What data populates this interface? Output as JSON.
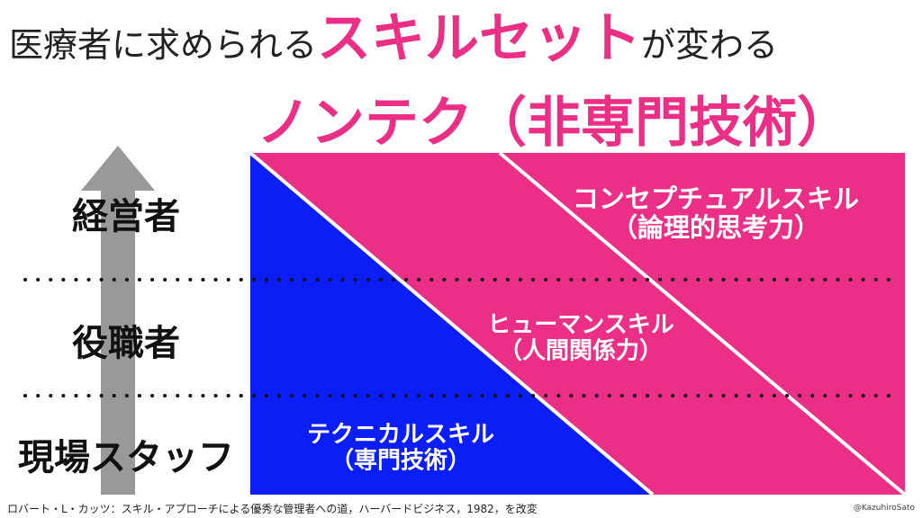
{
  "title": {
    "prefix": "医療者に求められる",
    "highlight": "スキルセット",
    "suffix": "が変わる",
    "subtitle": "ノンテク（非専門技術）"
  },
  "levels": [
    "経営者",
    "役職者",
    "現場スタッフ"
  ],
  "skills": [
    {
      "name": "コンセプチュアルスキル",
      "description": "（論理的思考力）"
    },
    {
      "name": "ヒューマンスキル",
      "description": "（人間関係力）"
    },
    {
      "name": "テクニカルスキル",
      "description": "（専門技術）"
    }
  ],
  "footer": {
    "citation": "ロバート・L・カッツ：スキル・アプローチによる優秀な管理者への道，ハーバードビジネス，1982，を改変",
    "credit": "@KazuhiroSato"
  }
}
